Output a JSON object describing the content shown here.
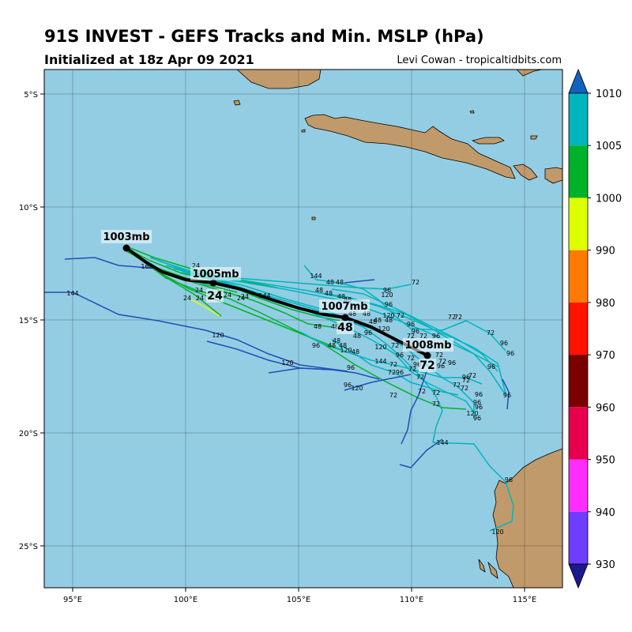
{
  "header": {
    "title": "91S INVEST - GEFS Tracks and Min. MSLP (hPa)",
    "subtitle": "Initialized at 18z Apr 09 2021",
    "credit": "Levi Cowan - tropicaltidbits.com"
  },
  "map": {
    "lon_ticks": [
      "95°E",
      "100°E",
      "105°E",
      "110°E",
      "115°E"
    ],
    "lat_ticks": [
      "5°S",
      "10°S",
      "15°S",
      "20°S",
      "25°S"
    ],
    "ocean_color": "#93cde3",
    "land_color": "#c19a6b"
  },
  "ensemble_mean": {
    "points": [
      {
        "hour": "",
        "pressure_label": "1003mb"
      },
      {
        "hour": "24",
        "pressure_label": "1005mb"
      },
      {
        "hour": "48",
        "pressure_label": "1007mb"
      },
      {
        "hour": "72",
        "pressure_label": "1008mb"
      }
    ]
  },
  "colorbar": {
    "ticks": [
      "1010",
      "1005",
      "1000",
      "990",
      "980",
      "970",
      "960",
      "950",
      "940",
      "930"
    ],
    "colors": [
      "#1f4fb8",
      "#00b5bd",
      "#00b22a",
      "#deff00",
      "#ff7a00",
      "#ff1200",
      "#7a0000",
      "#e8004e",
      "#ff2dff",
      "#6f3dff"
    ]
  }
}
